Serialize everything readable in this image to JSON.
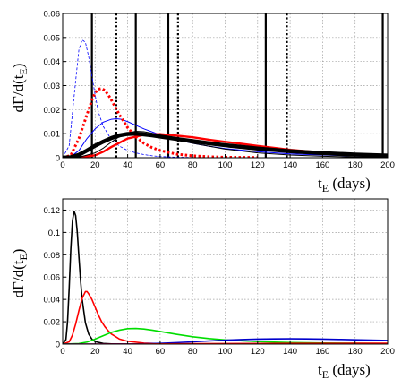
{
  "chart_data": [
    {
      "type": "line",
      "xlabel": "t_E (days)",
      "ylabel": "dΓ/d(t_E)",
      "xlim": [
        0,
        200
      ],
      "ylim": [
        0,
        0.06
      ],
      "xticks": [
        "0",
        "20",
        "40",
        "60",
        "80",
        "100",
        "120",
        "140",
        "160",
        "180",
        "200"
      ],
      "yticks": [
        "0",
        "0.01",
        "0.02",
        "0.03",
        "0.04",
        "0.05",
        "0.06"
      ],
      "grid": true,
      "vlines": [
        {
          "x": 18,
          "style": "solid",
          "color": "#000000"
        },
        {
          "x": 33,
          "style": "dotted",
          "color": "#000000"
        },
        {
          "x": 45,
          "style": "solid",
          "color": "#000000"
        },
        {
          "x": 65,
          "style": "solid",
          "color": "#000000"
        },
        {
          "x": 71,
          "style": "dotted",
          "color": "#000000"
        },
        {
          "x": 125,
          "style": "solid",
          "color": "#000000"
        },
        {
          "x": 138,
          "style": "dotted",
          "color": "#000000"
        },
        {
          "x": 197,
          "style": "solid",
          "color": "#000000"
        }
      ],
      "series": [
        {
          "color": "#0000ff",
          "style": "dashed",
          "width": 0.8,
          "x": [
            0,
            4,
            8,
            10,
            12,
            14,
            16,
            18,
            20,
            22,
            25,
            30,
            35,
            40,
            45,
            50,
            55,
            60,
            70,
            80
          ],
          "y": [
            0,
            0.005,
            0.032,
            0.045,
            0.049,
            0.048,
            0.042,
            0.034,
            0.026,
            0.019,
            0.013,
            0.0075,
            0.0048,
            0.003,
            0.002,
            0.0013,
            0.0008,
            0.0005,
            0.0002,
            0.0001
          ]
        },
        {
          "color": "#0000ff",
          "style": "solid",
          "width": 1,
          "x": [
            0,
            5,
            10,
            15,
            20,
            25,
            30,
            33,
            36,
            40,
            45,
            50,
            60,
            70,
            80,
            90,
            100,
            120,
            140,
            160,
            180,
            200
          ],
          "y": [
            0,
            0.0004,
            0.003,
            0.008,
            0.012,
            0.0148,
            0.016,
            0.0162,
            0.016,
            0.015,
            0.0135,
            0.012,
            0.0095,
            0.0075,
            0.006,
            0.0048,
            0.0038,
            0.0025,
            0.0016,
            0.0011,
            0.0007,
            0.0005
          ]
        },
        {
          "color": "#ff0000",
          "style": "dotted",
          "width": 3,
          "x": [
            0,
            5,
            10,
            15,
            18,
            20,
            22,
            24,
            26,
            28,
            30,
            32,
            35,
            40,
            45,
            50,
            55,
            60,
            70,
            80,
            90,
            100,
            120
          ],
          "y": [
            0,
            0.001,
            0.008,
            0.018,
            0.024,
            0.027,
            0.0285,
            0.0288,
            0.028,
            0.0262,
            0.024,
            0.0215,
            0.0178,
            0.0125,
            0.0087,
            0.006,
            0.0042,
            0.003,
            0.0015,
            0.0008,
            0.0004,
            0.0002,
            0.0001
          ]
        },
        {
          "color": "#ff0000",
          "style": "solid",
          "width": 2.4,
          "x": [
            0,
            10,
            20,
            25,
            30,
            40,
            50,
            60,
            70,
            80,
            90,
            100,
            110,
            120,
            130,
            140,
            160,
            180,
            200
          ],
          "y": [
            0,
            0.0001,
            0.001,
            0.0025,
            0.0045,
            0.008,
            0.0095,
            0.0098,
            0.0092,
            0.0085,
            0.0075,
            0.0066,
            0.0058,
            0.0049,
            0.0041,
            0.0033,
            0.0021,
            0.0013,
            0.0008
          ]
        },
        {
          "color": "#000000",
          "style": "solid",
          "width": 1,
          "x": [
            0,
            10,
            20,
            25,
            30,
            35,
            40,
            45,
            50,
            55,
            60,
            70,
            80,
            100,
            120,
            140,
            160,
            180,
            200
          ],
          "y": [
            0,
            0.0002,
            0.002,
            0.004,
            0.0065,
            0.0088,
            0.0103,
            0.011,
            0.0108,
            0.0102,
            0.0093,
            0.0075,
            0.006,
            0.0036,
            0.002,
            0.0011,
            0.0006,
            0.0003,
            0.0002
          ]
        },
        {
          "color": "#000000",
          "style": "solid",
          "width": 4.5,
          "x": [
            0,
            5,
            10,
            15,
            20,
            25,
            30,
            35,
            40,
            45,
            50,
            55,
            60,
            70,
            80,
            90,
            100,
            120,
            140,
            160,
            180,
            200
          ],
          "y": [
            0,
            0.0002,
            0.0012,
            0.003,
            0.005,
            0.0067,
            0.0082,
            0.0093,
            0.0099,
            0.01,
            0.0097,
            0.0093,
            0.0088,
            0.0078,
            0.0069,
            0.006,
            0.0052,
            0.0038,
            0.0027,
            0.0019,
            0.0013,
            0.0009
          ]
        }
      ]
    },
    {
      "type": "line",
      "xlabel": "t_E (days)",
      "ylabel": "dΓ/d(t_E)",
      "xlim": [
        0,
        200
      ],
      "ylim": [
        0,
        0.13
      ],
      "xticks": [
        "0",
        "20",
        "40",
        "60",
        "80",
        "100",
        "120",
        "140",
        "160",
        "180",
        "200"
      ],
      "yticks": [
        "0",
        "0.02",
        "0.04",
        "0.06",
        "0.08",
        "0.1",
        "0.12"
      ],
      "grid": true,
      "series": [
        {
          "color": "#000000",
          "style": "solid",
          "width": 1.6,
          "x": [
            0,
            2,
            3,
            4,
            5,
            6,
            7,
            8,
            9,
            10,
            11,
            12,
            14,
            16,
            18,
            20,
            25,
            30,
            40
          ],
          "y": [
            0,
            0.004,
            0.02,
            0.05,
            0.085,
            0.11,
            0.119,
            0.115,
            0.1,
            0.078,
            0.057,
            0.04,
            0.019,
            0.009,
            0.0045,
            0.0022,
            0.0006,
            0.0002,
            0
          ]
        },
        {
          "color": "#ff0000",
          "style": "solid",
          "width": 1.6,
          "x": [
            0,
            4,
            6,
            8,
            10,
            12,
            14,
            15,
            16,
            18,
            20,
            22,
            24,
            26,
            28,
            30,
            35,
            40,
            50,
            60,
            80,
            100
          ],
          "y": [
            0,
            0.002,
            0.008,
            0.018,
            0.03,
            0.041,
            0.047,
            0.047,
            0.045,
            0.04,
            0.033,
            0.026,
            0.02,
            0.0155,
            0.012,
            0.009,
            0.0045,
            0.0025,
            0.0009,
            0.0004,
            0.0001,
            0
          ]
        },
        {
          "color": "#00dd00",
          "style": "solid",
          "width": 1.6,
          "x": [
            0,
            10,
            15,
            20,
            25,
            30,
            35,
            40,
            45,
            50,
            55,
            60,
            70,
            80,
            90,
            100,
            120,
            140,
            160,
            180,
            200
          ],
          "y": [
            0,
            0.0005,
            0.0018,
            0.0045,
            0.0075,
            0.0105,
            0.0125,
            0.0138,
            0.014,
            0.0135,
            0.0125,
            0.0113,
            0.0088,
            0.0066,
            0.005,
            0.0038,
            0.0022,
            0.0014,
            0.001,
            0.0008,
            0.0006
          ]
        },
        {
          "color": "#0000cc",
          "style": "solid",
          "width": 1.6,
          "x": [
            0,
            30,
            40,
            50,
            60,
            70,
            80,
            90,
            100,
            110,
            120,
            130,
            140,
            150,
            160,
            170,
            180,
            190,
            200
          ],
          "y": [
            0,
            0,
            0.0001,
            0.0003,
            0.0007,
            0.0013,
            0.002,
            0.0028,
            0.0035,
            0.0041,
            0.0045,
            0.0047,
            0.0048,
            0.0047,
            0.0045,
            0.0042,
            0.0039,
            0.0036,
            0.0033
          ]
        },
        {
          "color": "#ff0000",
          "style": "solid",
          "width": 1.2,
          "x": [
            0,
            40,
            60,
            80,
            100,
            120,
            140,
            160,
            180,
            200
          ],
          "y": [
            0,
            0.0001,
            0.0003,
            0.0005,
            0.0006,
            0.0007,
            0.0008,
            0.0008,
            0.0009,
            0.0009
          ]
        }
      ]
    }
  ]
}
